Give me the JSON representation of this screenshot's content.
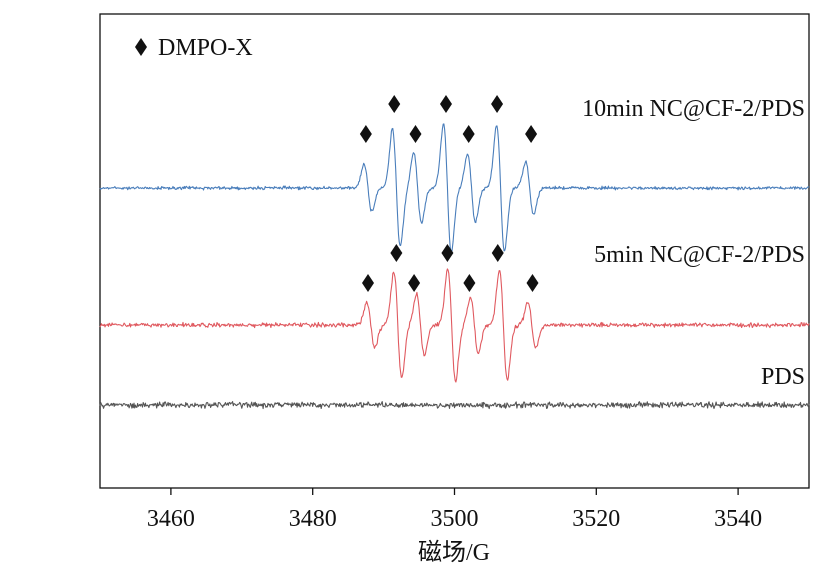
{
  "chart_data": {
    "type": "line",
    "xlabel": "磁场/G",
    "xlim": [
      3450,
      3550
    ],
    "x_ticks": [
      3460,
      3480,
      3500,
      3520,
      3540
    ],
    "y_axis_visible": false,
    "grid": false,
    "legend": {
      "position": "top-left",
      "marker": "diamond",
      "label": "DMPO-X"
    },
    "series": [
      {
        "name": "10min NC@CF-2/PDS",
        "color": "#4a7ebb",
        "baseline_rank": 1,
        "noise": 0.16,
        "peaks_x": [
          3487.8,
          3491.8,
          3494.8,
          3499.0,
          3502.4,
          3506.5,
          3510.6
        ],
        "amplitudes": [
          1.7,
          4.2,
          2.5,
          4.6,
          2.4,
          4.5,
          1.9
        ],
        "marker_x": [
          3487.5,
          3491.5,
          3494.5,
          3498.8,
          3502.0,
          3506.0,
          3510.8
        ]
      },
      {
        "name": "5min NC@CF-2/PDS",
        "color": "#e05a60",
        "baseline_rank": 2,
        "noise": 0.22,
        "peaks_x": [
          3488.2,
          3492.0,
          3495.2,
          3499.6,
          3502.8,
          3506.9,
          3510.9
        ],
        "amplitudes": [
          1.6,
          3.8,
          2.2,
          4.0,
          2.0,
          3.9,
          1.6
        ],
        "marker_x": [
          3487.8,
          3491.8,
          3494.3,
          3499.0,
          3502.1,
          3506.1,
          3511.0
        ]
      },
      {
        "name": "PDS",
        "color": "#555555",
        "baseline_rank": 3,
        "noise": 0.3,
        "peaks_x": [],
        "amplitudes": [],
        "marker_x": []
      }
    ]
  }
}
